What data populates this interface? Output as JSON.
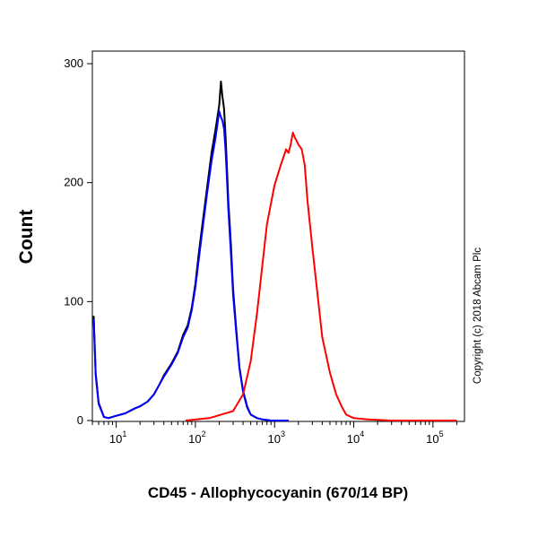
{
  "chart_data": {
    "type": "line",
    "title": "",
    "xlabel": "CD45 - Allophycocyanin (670/14 BP)",
    "ylabel": "Count",
    "x_scale": "log",
    "xlim": [
      5,
      250000
    ],
    "ylim": [
      0,
      300
    ],
    "grid": false,
    "legend": "none",
    "y_ticks": [
      {
        "value": 0,
        "label": "0"
      },
      {
        "value": 100,
        "label": "100"
      },
      {
        "value": 200,
        "label": "200"
      },
      {
        "value": 300,
        "label": "300"
      }
    ],
    "x_ticks": [
      {
        "value": 10,
        "base": "10",
        "exp": "1"
      },
      {
        "value": 100,
        "base": "10",
        "exp": "2"
      },
      {
        "value": 1000,
        "base": "10",
        "exp": "3"
      },
      {
        "value": 10000,
        "base": "10",
        "exp": "4"
      },
      {
        "value": 100000,
        "base": "10",
        "exp": "5"
      }
    ],
    "series": [
      {
        "color": "#000000",
        "x": [
          5.2,
          5.5,
          6,
          7,
          8,
          10,
          13,
          17,
          20,
          25,
          30,
          35,
          40,
          50,
          60,
          70,
          80,
          90,
          100,
          110,
          120,
          140,
          160,
          180,
          200,
          210,
          220,
          230,
          240,
          250,
          260,
          280,
          300,
          330,
          360,
          400,
          450,
          500,
          600,
          700,
          900,
          1500
        ],
        "y": [
          88,
          40,
          15,
          3,
          2,
          4,
          6,
          10,
          12,
          16,
          22,
          30,
          38,
          48,
          58,
          72,
          80,
          95,
          115,
          140,
          160,
          195,
          225,
          245,
          265,
          285,
          272,
          262,
          240,
          215,
          185,
          150,
          110,
          75,
          45,
          25,
          12,
          5,
          2,
          1,
          0,
          0
        ]
      },
      {
        "color": "#0000ff",
        "x": [
          5.2,
          5.5,
          6,
          7,
          8,
          10,
          13,
          17,
          20,
          25,
          30,
          35,
          40,
          50,
          60,
          70,
          80,
          90,
          100,
          110,
          120,
          140,
          160,
          180,
          200,
          210,
          220,
          230,
          240,
          250,
          260,
          280,
          300,
          330,
          360,
          400,
          450,
          500,
          600,
          700,
          900,
          1500
        ],
        "y": [
          85,
          38,
          14,
          3,
          2,
          4,
          6,
          10,
          12,
          16,
          22,
          30,
          37,
          47,
          57,
          70,
          78,
          93,
          112,
          135,
          155,
          190,
          218,
          238,
          260,
          255,
          252,
          245,
          228,
          205,
          178,
          142,
          105,
          72,
          44,
          24,
          11,
          5,
          2,
          1,
          0,
          0
        ]
      },
      {
        "color": "#ff0000",
        "x": [
          75,
          150,
          300,
          400,
          500,
          600,
          700,
          800,
          1000,
          1200,
          1400,
          1500,
          1600,
          1700,
          1800,
          1900,
          2000,
          2200,
          2400,
          2600,
          3000,
          3500,
          4000,
          5000,
          6000,
          7000,
          8000,
          10000,
          15000,
          30000,
          100000,
          200000
        ],
        "y": [
          0,
          2,
          8,
          22,
          50,
          90,
          130,
          165,
          198,
          215,
          228,
          225,
          232,
          242,
          238,
          235,
          232,
          228,
          215,
          185,
          145,
          105,
          70,
          40,
          22,
          12,
          5,
          2,
          1,
          0,
          0,
          0
        ]
      }
    ]
  },
  "copyright": "Copyright (c) 2018 Abcam Plc"
}
